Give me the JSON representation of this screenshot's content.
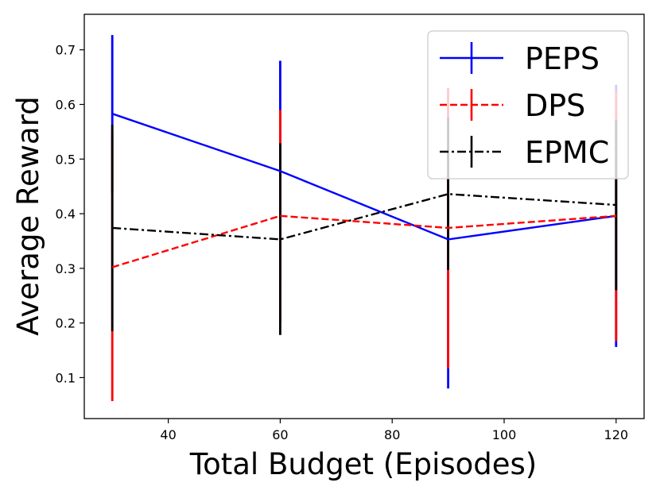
{
  "chart_data": {
    "type": "line",
    "title": "",
    "xlabel": "Total Budget (Episodes)",
    "ylabel": "Average Reward",
    "x": [
      30,
      60,
      90,
      120
    ],
    "xlim": [
      25,
      125
    ],
    "ylim": [
      0.025,
      0.765
    ],
    "xticks": [
      40,
      60,
      80,
      100,
      120
    ],
    "yticks": [
      0.1,
      0.2,
      0.3,
      0.4,
      0.5,
      0.6,
      0.7
    ],
    "grid": false,
    "legend_position": "top-right",
    "series": [
      {
        "name": "PEPS",
        "color": "#0000ff",
        "dash": "solid",
        "values": [
          0.583,
          0.478,
          0.353,
          0.396
        ],
        "err_low": [
          0.438,
          0.276,
          0.08,
          0.156
        ],
        "err_high": [
          0.727,
          0.68,
          0.629,
          0.636
        ]
      },
      {
        "name": "DPS",
        "color": "#ff0000",
        "dash": "dashed",
        "values": [
          0.302,
          0.396,
          0.374,
          0.396
        ],
        "err_low": [
          0.057,
          0.202,
          0.117,
          0.167
        ],
        "err_high": [
          0.546,
          0.59,
          0.63,
          0.625
        ]
      },
      {
        "name": "EPMC",
        "color": "#000000",
        "dash": "dashdot",
        "values": [
          0.374,
          0.353,
          0.436,
          0.416
        ],
        "err_low": [
          0.185,
          0.178,
          0.297,
          0.26
        ],
        "err_high": [
          0.563,
          0.529,
          0.576,
          0.572
        ]
      }
    ]
  }
}
